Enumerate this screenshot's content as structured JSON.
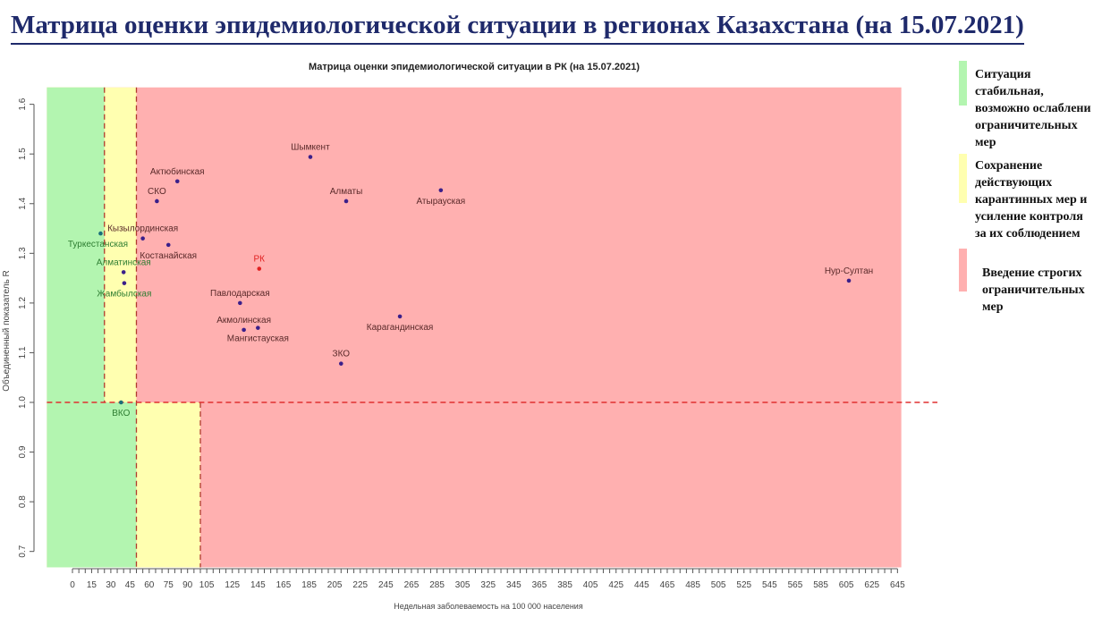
{
  "page_title": "Матрица оценки эпидемиологической ситуации в регионах Казахстана (на 15.07.2021)",
  "legend": [
    {
      "text": "Ситуация\nстабильная,\nвозможно ослаблени\nограничительных\nмер",
      "color": "#b3f5b0"
    },
    {
      "text": "Сохранение\nдействующих\nкарантинных мер и\nусиление контроля\nза их соблюдением",
      "color": "#ffffb0"
    },
    {
      "text": "Введение строгих\nограничительных\nмер",
      "color": "#ffb0b0"
    }
  ],
  "chart_data": {
    "type": "scatter",
    "title": "Матрица оценки эпидемиологической ситуации в РК (на 15.07.2021)",
    "xlabel": "Недельная заболеваемость на 100 000 населения",
    "ylabel": "Объединенный показатель R",
    "xlim": [
      -20,
      648
    ],
    "ylim": [
      0.668,
      1.634
    ],
    "x_ticks": [
      "0",
      "15",
      "30",
      "45",
      "60",
      "75",
      "90",
      "105",
      "125",
      "145",
      "165",
      "185",
      "205",
      "225",
      "245",
      "265",
      "285",
      "305",
      "325",
      "345",
      "365",
      "385",
      "405",
      "425",
      "445",
      "465",
      "485",
      "505",
      "525",
      "545",
      "565",
      "585",
      "605",
      "625",
      "645"
    ],
    "y_ticks": [
      "0.7",
      "0.8",
      "0.9",
      "1.0",
      "1.1",
      "1.2",
      "1.3",
      "1.4",
      "1.5",
      "1.6"
    ],
    "zones": {
      "colors": {
        "green": "#b3f5b0",
        "yellow": "#ffffb0",
        "red": "#ffb0b0"
      },
      "threshold_r": 1.0,
      "above_r1": {
        "green_max_x": 25,
        "yellow_max_x": 50
      },
      "below_r1": {
        "green_max_x": 50,
        "yellow_max_x": 100
      },
      "threshold_line_color": "#e03030"
    },
    "points": [
      {
        "label": "Туркестанская",
        "x": 22,
        "y": 1.34,
        "color": "#1a6f7a",
        "label_color": "#2e7d32",
        "pos": "below-left"
      },
      {
        "label": "Кызылординская",
        "x": 55,
        "y": 1.33,
        "color": "#3a1f8a",
        "label_color": "#5a2a2a",
        "pos": "above"
      },
      {
        "label": "Костанайская",
        "x": 75,
        "y": 1.317,
        "color": "#3a1f8a",
        "label_color": "#5a2a2a",
        "pos": "below"
      },
      {
        "label": "СКО",
        "x": 66,
        "y": 1.405,
        "color": "#3a1f8a",
        "label_color": "#5a2a2a",
        "pos": "above"
      },
      {
        "label": "Актюбинская",
        "x": 82,
        "y": 1.445,
        "color": "#3a1f8a",
        "label_color": "#5a2a2a",
        "pos": "above"
      },
      {
        "label": "Алматинская",
        "x": 40,
        "y": 1.262,
        "color": "#3a1f8a",
        "label_color": "#2e7d32",
        "pos": "above"
      },
      {
        "label": "Жамбылская",
        "x": 40.5,
        "y": 1.24,
        "color": "#3a1f8a",
        "label_color": "#2e7d32",
        "pos": "below"
      },
      {
        "label": "ВКО",
        "x": 38,
        "y": 1.0,
        "color": "#1a6f7a",
        "label_color": "#2e7d32",
        "pos": "below"
      },
      {
        "label": "РК",
        "x": 146,
        "y": 1.269,
        "color": "#e02020",
        "label_color": "#e02020",
        "pos": "above"
      },
      {
        "label": "Павлодарская",
        "x": 131,
        "y": 1.2,
        "color": "#3a1f8a",
        "label_color": "#5a2a2a",
        "pos": "above"
      },
      {
        "label": "Акмолинская",
        "x": 134,
        "y": 1.146,
        "color": "#3a1f8a",
        "label_color": "#5a2a2a",
        "pos": "above"
      },
      {
        "label": "Мангистауская",
        "x": 145,
        "y": 1.15,
        "color": "#3a1f8a",
        "label_color": "#5a2a2a",
        "pos": "below"
      },
      {
        "label": "Шымкент",
        "x": 186,
        "y": 1.494,
        "color": "#3a1f8a",
        "label_color": "#5a2a2a",
        "pos": "above"
      },
      {
        "label": "Алматы",
        "x": 214,
        "y": 1.405,
        "color": "#3a1f8a",
        "label_color": "#5a2a2a",
        "pos": "above"
      },
      {
        "label": "Атырауская",
        "x": 288,
        "y": 1.427,
        "color": "#3a1f8a",
        "label_color": "#5a2a2a",
        "pos": "below"
      },
      {
        "label": "ЗКО",
        "x": 210,
        "y": 1.078,
        "color": "#3a1f8a",
        "label_color": "#5a2a2a",
        "pos": "above"
      },
      {
        "label": "Карагандинская",
        "x": 256,
        "y": 1.173,
        "color": "#3a1f8a",
        "label_color": "#5a2a2a",
        "pos": "below"
      },
      {
        "label": "Нур-Султан",
        "x": 607,
        "y": 1.245,
        "color": "#3a1f8a",
        "label_color": "#5a2a2a",
        "pos": "above"
      }
    ]
  }
}
